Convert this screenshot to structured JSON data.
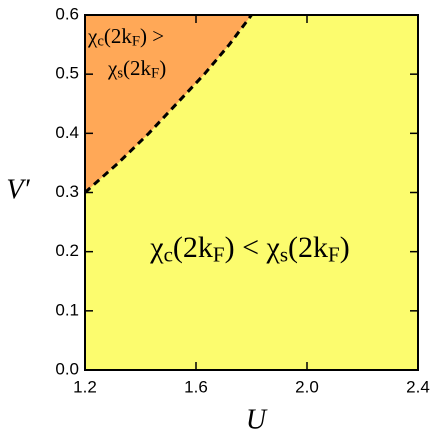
{
  "chart_data": {
    "type": "phase",
    "xlabel": "U",
    "ylabel": "V′",
    "xlim": [
      1.2,
      2.4
    ],
    "ylim": [
      0,
      0.6
    ],
    "xticks": [
      1.2,
      1.6,
      {
        "value": 2,
        "label": "2.0"
      },
      2.4
    ],
    "yticks": [
      {
        "value": 0,
        "label": "0.0"
      },
      0.1,
      0.2,
      0.3,
      0.4,
      0.5,
      0.6
    ],
    "boundary": {
      "x": [
        1.2,
        1.32,
        1.43,
        1.53,
        1.63,
        1.72,
        1.8
      ],
      "values": [
        0.3,
        0.35,
        0.4,
        0.45,
        0.5,
        0.55,
        0.6
      ],
      "color": "#000000",
      "dashed": true
    },
    "upper_region_color": "#ffa857",
    "lower_region_color": "#fcfc6e",
    "annotations": [
      {
        "segments": [
          {
            "text": "χ"
          },
          {
            "text": "c",
            "sub": true
          },
          {
            "text": "(2k"
          },
          {
            "text": "F",
            "sub": true
          },
          {
            "text": ") >"
          }
        ]
      },
      {
        "segments": [
          {
            "text": "χ"
          },
          {
            "text": "s",
            "sub": true
          },
          {
            "text": "(2k"
          },
          {
            "text": "F",
            "sub": true
          },
          {
            "text": ")"
          }
        ]
      },
      {
        "segments": [
          {
            "text": "χ"
          },
          {
            "text": "c",
            "sub": true
          },
          {
            "text": "(2k"
          },
          {
            "text": "F",
            "sub": true
          },
          {
            "text": ") < χ"
          },
          {
            "text": "s",
            "sub": true
          },
          {
            "text": "(2k"
          },
          {
            "text": "F",
            "sub": true
          },
          {
            "text": ")"
          }
        ]
      }
    ]
  }
}
